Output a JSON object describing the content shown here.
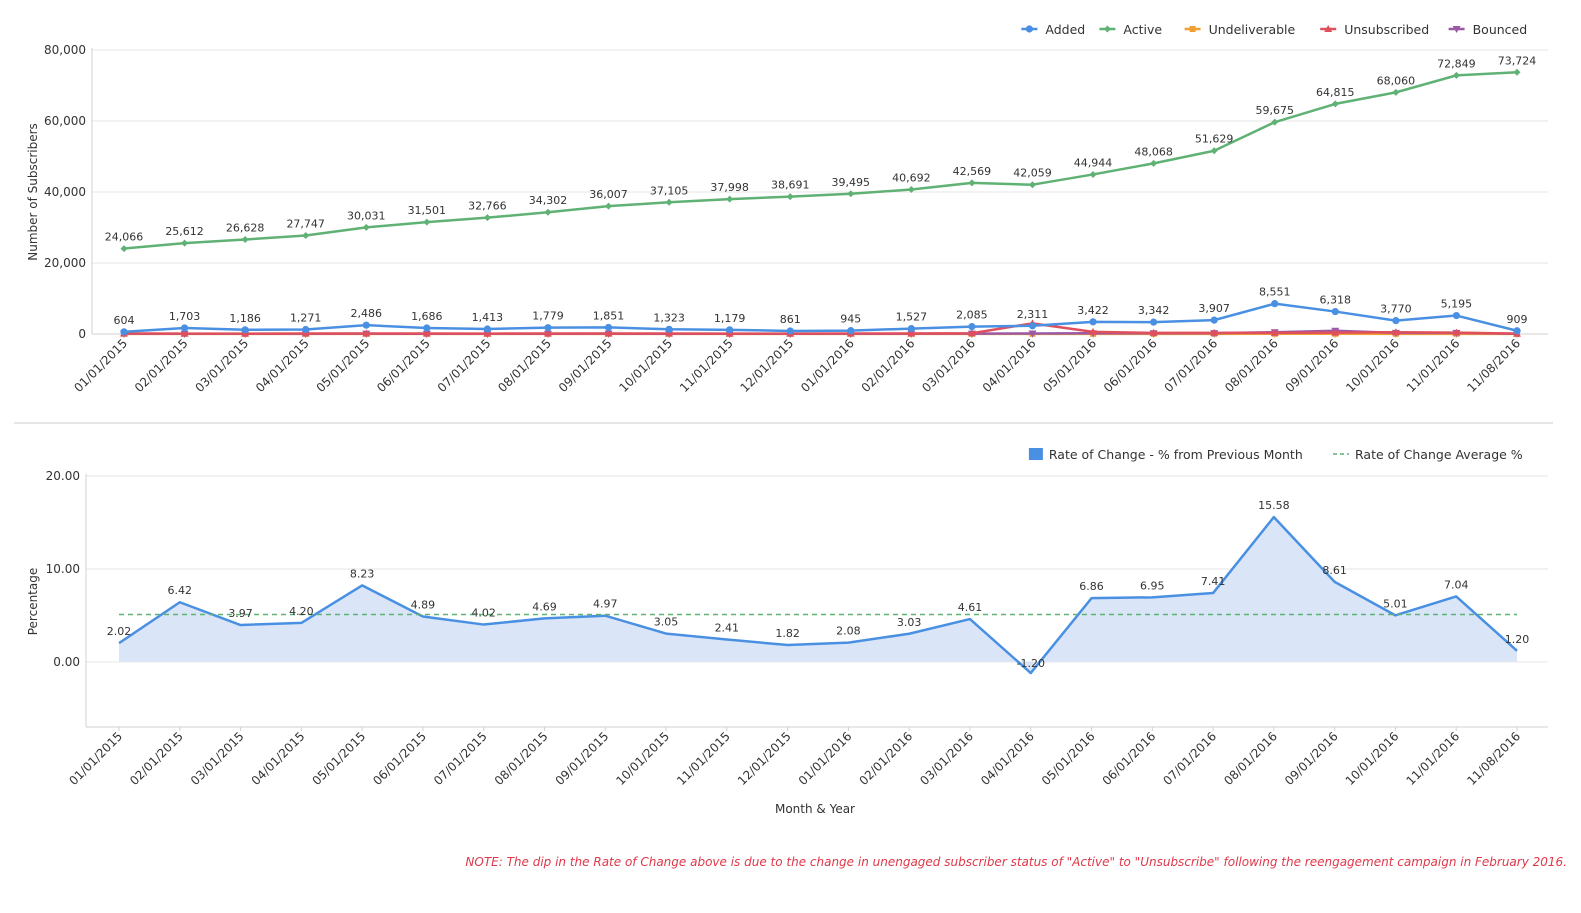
{
  "note": "NOTE: The dip in the Rate of Change above is due to the change in unengaged subscriber status of \"Active\" to \"Unsubscribe\" following the reengagement campaign in February 2016.",
  "chart_data": [
    {
      "type": "line",
      "ylabel": "Number of Subscribers",
      "xlabel": "",
      "ylim": [
        0,
        80000
      ],
      "yticks": [
        "0",
        "20,000",
        "40,000",
        "60,000",
        "80,000"
      ],
      "grid": true,
      "legend_position": "top-right",
      "categories": [
        "01/01/2015",
        "02/01/2015",
        "03/01/2015",
        "04/01/2015",
        "05/01/2015",
        "06/01/2015",
        "07/01/2015",
        "08/01/2015",
        "09/01/2015",
        "10/01/2015",
        "11/01/2015",
        "12/01/2015",
        "01/01/2016",
        "02/01/2016",
        "03/01/2016",
        "04/01/2016",
        "05/01/2016",
        "06/01/2016",
        "07/01/2016",
        "08/01/2016",
        "09/01/2016",
        "10/01/2016",
        "11/01/2016",
        "11/08/2016"
      ],
      "series": [
        {
          "name": "Added",
          "color": "#4a90e2",
          "marker": "circle",
          "labels": true,
          "values": [
            604,
            1703,
            1186,
            1271,
            2486,
            1686,
            1413,
            1779,
            1851,
            1323,
            1179,
            861,
            945,
            1527,
            2085,
            2311,
            3422,
            3342,
            3907,
            8551,
            6318,
            3770,
            5195,
            909
          ],
          "value_labels": [
            "604",
            "1,703",
            "1,186",
            "1,271",
            "2,486",
            "1,686",
            "1,413",
            "1,779",
            "1,851",
            "1,323",
            "1,179",
            "861",
            "945",
            "1,527",
            "2,085",
            "2,311",
            "3,422",
            "3,342",
            "3,907",
            "8,551",
            "6,318",
            "3,770",
            "5,195",
            "909"
          ]
        },
        {
          "name": "Active",
          "color": "#5fb174",
          "marker": "diamond",
          "labels": true,
          "values": [
            24066,
            25612,
            26628,
            27747,
            30031,
            31501,
            32766,
            34302,
            36007,
            37105,
            37998,
            38691,
            39495,
            40692,
            42569,
            42059,
            44944,
            48068,
            51629,
            59675,
            64815,
            68060,
            72849,
            73724
          ],
          "value_labels": [
            "24,066",
            "25,612",
            "26,628",
            "27,747",
            "30,031",
            "31,501",
            "32,766",
            "34,302",
            "36,007",
            "37,105",
            "37,998",
            "38,691",
            "39,495",
            "40,692",
            "42,569",
            "42,059",
            "44,944",
            "48,068",
            "51,629",
            "59,675",
            "64,815",
            "68,060",
            "72,849",
            "73,724"
          ]
        },
        {
          "name": "Undeliverable",
          "color": "#f0a030",
          "marker": "square",
          "labels": false,
          "values": [
            50,
            40,
            40,
            40,
            40,
            40,
            40,
            40,
            40,
            40,
            40,
            40,
            40,
            40,
            40,
            50,
            50,
            50,
            50,
            60,
            60,
            50,
            50,
            20
          ]
        },
        {
          "name": "Unsubscribed",
          "color": "#e0505c",
          "marker": "triangle",
          "labels": false,
          "values": [
            150,
            120,
            120,
            130,
            140,
            130,
            120,
            130,
            140,
            130,
            120,
            120,
            130,
            150,
            200,
            3000,
            600,
            300,
            300,
            300,
            400,
            500,
            400,
            100
          ]
        },
        {
          "name": "Bounced",
          "color": "#9b59a6",
          "marker": "triangle-down",
          "labels": false,
          "values": [
            100,
            80,
            80,
            80,
            90,
            80,
            80,
            80,
            90,
            80,
            80,
            80,
            80,
            90,
            100,
            150,
            200,
            200,
            250,
            500,
            900,
            300,
            300,
            80
          ]
        }
      ]
    },
    {
      "type": "area",
      "ylabel": "Percentage",
      "xlabel": "Month & Year",
      "ylim": [
        -7,
        20
      ],
      "yticks": [
        "0.00",
        "10.00",
        "20.00"
      ],
      "grid": true,
      "legend_position": "top-right",
      "categories": [
        "01/01/2015",
        "02/01/2015",
        "03/01/2015",
        "04/01/2015",
        "05/01/2015",
        "06/01/2015",
        "07/01/2015",
        "08/01/2015",
        "09/01/2015",
        "10/01/2015",
        "11/01/2015",
        "12/01/2015",
        "01/01/2016",
        "02/01/2016",
        "03/01/2016",
        "04/01/2016",
        "05/01/2016",
        "06/01/2016",
        "07/01/2016",
        "08/01/2016",
        "09/01/2016",
        "10/01/2016",
        "11/01/2016",
        "11/08/2016"
      ],
      "series": [
        {
          "name": "Rate of Change - % from Previous Month",
          "color": "#4a90e2",
          "fill": "#dae6f8",
          "values": [
            2.02,
            6.42,
            3.97,
            4.2,
            8.23,
            4.89,
            4.02,
            4.69,
            4.97,
            3.05,
            2.41,
            1.82,
            2.08,
            3.03,
            4.61,
            -1.2,
            6.86,
            6.95,
            7.41,
            15.58,
            8.61,
            5.01,
            7.04,
            1.2
          ],
          "value_labels": [
            "2.02",
            "6.42",
            "3.97",
            "4.20",
            "8.23",
            "4.89",
            "4.02",
            "4.69",
            "4.97",
            "3.05",
            "2.41",
            "1.82",
            "2.08",
            "3.03",
            "4.61",
            "-1.20",
            "6.86",
            "6.95",
            "7.41",
            "15.58",
            "8.61",
            "5.01",
            "7.04",
            "1.20"
          ]
        },
        {
          "name": "Rate of Change Average %",
          "color": "#5fb174",
          "dashed": true,
          "value": 5.1
        }
      ]
    }
  ]
}
